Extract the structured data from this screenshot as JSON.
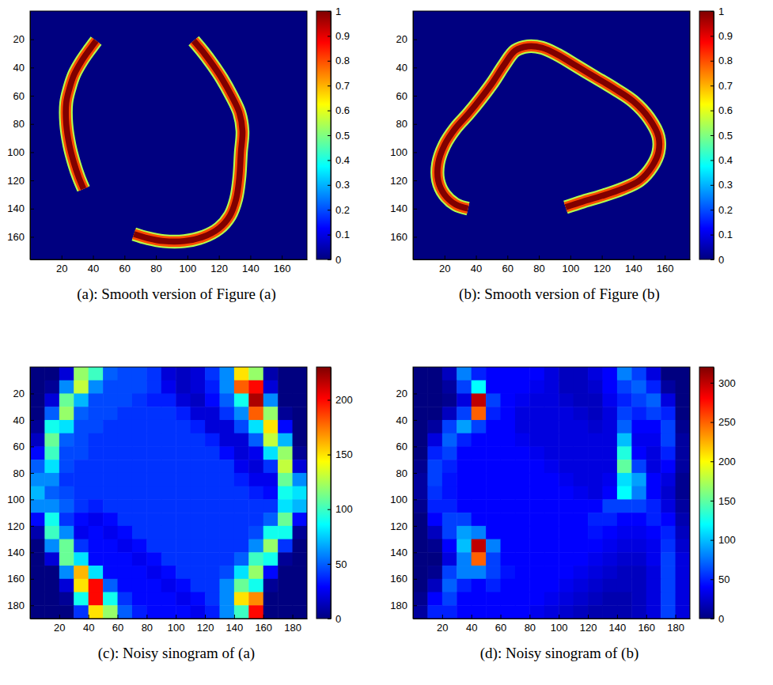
{
  "chart_data": [
    {
      "type": "heatmap",
      "title": "(a): Smooth version of Figure (a)",
      "xlim": [
        0,
        176
      ],
      "ylim": [
        0,
        176
      ],
      "xticks": [
        20,
        40,
        60,
        80,
        100,
        120,
        140,
        160
      ],
      "yticks": [
        20,
        40,
        60,
        80,
        100,
        120,
        140,
        160
      ],
      "fill_value": 0,
      "curves": [
        {
          "value": 1,
          "x": [
            42,
            38,
            33,
            28,
            25,
            23,
            23,
            25,
            28,
            31,
            34
          ],
          "y": [
            21,
            27,
            35,
            45,
            55,
            65,
            80,
            95,
            108,
            118,
            126
          ]
        },
        {
          "value": 1,
          "x": [
            104,
            110,
            116,
            122,
            128,
            133,
            135,
            134,
            133,
            131,
            127,
            120,
            110,
            98,
            85,
            75,
            66
          ],
          "y": [
            21,
            29,
            38,
            48,
            60,
            72,
            85,
            100,
            118,
            133,
            145,
            154,
            160,
            163,
            163,
            161,
            158
          ]
        }
      ],
      "colorbar": {
        "range": [
          0,
          1
        ],
        "ticks": [
          0,
          0.1,
          0.2,
          0.3,
          0.4,
          0.5,
          0.6,
          0.7,
          0.8,
          0.9,
          1
        ]
      }
    },
    {
      "type": "heatmap",
      "title": "(b): Smooth version of Figure (b)",
      "xlim": [
        0,
        176
      ],
      "ylim": [
        0,
        176
      ],
      "xticks": [
        20,
        40,
        60,
        80,
        100,
        120,
        140,
        160
      ],
      "yticks": [
        20,
        40,
        60,
        80,
        100,
        120,
        140,
        160
      ],
      "fill_value": 0,
      "curves": [
        {
          "value": 1,
          "x": [
            35,
            27,
            20,
            16,
            16,
            20,
            27,
            35,
            43,
            51,
            58,
            65,
            73,
            82,
            92,
            104,
            116,
            128,
            140,
            150,
            156,
            156,
            152,
            144,
            133,
            120,
            108,
            97
          ],
          "y": [
            140,
            137,
            130,
            120,
            108,
            95,
            83,
            73,
            62,
            50,
            38,
            28,
            25,
            26,
            31,
            39,
            47,
            55,
            64,
            76,
            89,
            100,
            110,
            120,
            126,
            131,
            135,
            139
          ]
        }
      ],
      "colorbar": {
        "range": [
          0,
          1
        ],
        "ticks": [
          0,
          0.1,
          0.2,
          0.3,
          0.4,
          0.5,
          0.6,
          0.7,
          0.8,
          0.9,
          1
        ]
      }
    },
    {
      "type": "heatmap",
      "title": "(c): Noisy sinogram of (a)",
      "xlim": [
        0,
        190
      ],
      "ylim": [
        0,
        190
      ],
      "xticks": [
        20,
        40,
        60,
        80,
        100,
        120,
        140,
        160,
        180
      ],
      "yticks": [
        20,
        40,
        60,
        80,
        100,
        120,
        140,
        160,
        180
      ],
      "x": [
        5,
        15,
        25,
        35,
        45,
        55,
        65,
        75,
        85,
        95,
        105,
        115,
        125,
        135,
        145,
        155,
        165,
        175,
        185
      ],
      "y": [
        5,
        15,
        25,
        35,
        45,
        55,
        65,
        75,
        85,
        95,
        105,
        115,
        125,
        135,
        145,
        155,
        165,
        175,
        185
      ],
      "cells": [
        [
          0,
          0,
          20,
          120,
          100,
          50,
          45,
          45,
          40,
          20,
          15,
          20,
          40,
          60,
          150,
          120,
          10,
          0,
          0
        ],
        [
          0,
          5,
          60,
          130,
          60,
          45,
          45,
          45,
          40,
          25,
          15,
          20,
          35,
          60,
          180,
          200,
          20,
          0,
          0
        ],
        [
          0,
          20,
          110,
          70,
          45,
          45,
          45,
          40,
          35,
          35,
          20,
          15,
          30,
          50,
          90,
          220,
          60,
          0,
          0
        ],
        [
          0,
          50,
          120,
          50,
          45,
          45,
          40,
          40,
          40,
          40,
          35,
          20,
          20,
          40,
          60,
          180,
          120,
          5,
          0
        ],
        [
          5,
          90,
          80,
          45,
          45,
          40,
          40,
          40,
          40,
          40,
          40,
          35,
          20,
          20,
          45,
          80,
          150,
          30,
          0
        ],
        [
          15,
          110,
          50,
          45,
          40,
          40,
          40,
          40,
          40,
          40,
          40,
          40,
          35,
          20,
          20,
          50,
          130,
          70,
          0
        ],
        [
          30,
          100,
          45,
          45,
          40,
          40,
          40,
          40,
          40,
          40,
          40,
          40,
          40,
          30,
          20,
          25,
          80,
          120,
          5
        ],
        [
          50,
          80,
          45,
          40,
          40,
          40,
          40,
          40,
          40,
          40,
          40,
          40,
          40,
          40,
          25,
          20,
          40,
          130,
          20
        ],
        [
          60,
          60,
          40,
          40,
          40,
          40,
          40,
          40,
          40,
          40,
          40,
          40,
          40,
          40,
          35,
          25,
          25,
          110,
          60
        ],
        [
          70,
          50,
          45,
          40,
          40,
          40,
          40,
          40,
          40,
          40,
          40,
          40,
          40,
          40,
          40,
          35,
          30,
          90,
          80
        ],
        [
          60,
          60,
          50,
          40,
          35,
          40,
          40,
          40,
          40,
          40,
          40,
          40,
          40,
          40,
          40,
          40,
          40,
          80,
          70
        ],
        [
          30,
          90,
          40,
          30,
          25,
          30,
          40,
          40,
          40,
          40,
          40,
          40,
          40,
          40,
          40,
          40,
          50,
          110,
          30
        ],
        [
          10,
          100,
          60,
          25,
          30,
          25,
          30,
          40,
          40,
          40,
          40,
          40,
          40,
          40,
          40,
          45,
          90,
          90,
          5
        ],
        [
          0,
          60,
          110,
          40,
          30,
          30,
          25,
          30,
          40,
          40,
          40,
          40,
          40,
          40,
          40,
          60,
          120,
          40,
          0
        ],
        [
          0,
          20,
          110,
          80,
          30,
          30,
          30,
          25,
          30,
          40,
          40,
          40,
          40,
          40,
          50,
          100,
          90,
          5,
          0
        ],
        [
          0,
          0,
          60,
          160,
          80,
          30,
          30,
          30,
          25,
          30,
          40,
          40,
          40,
          45,
          80,
          120,
          30,
          0,
          0
        ],
        [
          0,
          0,
          20,
          150,
          200,
          50,
          30,
          30,
          30,
          25,
          30,
          40,
          40,
          60,
          110,
          90,
          5,
          0,
          0
        ],
        [
          0,
          0,
          5,
          90,
          200,
          90,
          40,
          30,
          30,
          30,
          25,
          30,
          40,
          60,
          150,
          170,
          0,
          0,
          0
        ],
        [
          0,
          0,
          0,
          40,
          150,
          120,
          50,
          35,
          30,
          30,
          30,
          25,
          35,
          60,
          100,
          200,
          0,
          0,
          0
        ]
      ],
      "colorbar": {
        "range": [
          0,
          230
        ],
        "ticks": [
          0,
          50,
          100,
          150,
          200
        ]
      }
    },
    {
      "type": "heatmap",
      "title": "(d): Noisy sinogram of (b)",
      "xlim": [
        0,
        190
      ],
      "ylim": [
        0,
        190
      ],
      "xticks": [
        20,
        40,
        60,
        80,
        100,
        120,
        140,
        160,
        180
      ],
      "yticks": [
        20,
        40,
        60,
        80,
        100,
        120,
        140,
        160,
        180
      ],
      "x": [
        5,
        15,
        25,
        35,
        45,
        55,
        65,
        75,
        85,
        95,
        105,
        115,
        125,
        135,
        145,
        155,
        165,
        175,
        185
      ],
      "y": [
        5,
        15,
        25,
        35,
        45,
        55,
        65,
        75,
        85,
        95,
        105,
        115,
        125,
        135,
        145,
        155,
        165,
        175,
        185
      ],
      "cells": [
        [
          0,
          0,
          20,
          80,
          50,
          40,
          40,
          40,
          40,
          30,
          20,
          20,
          30,
          40,
          80,
          60,
          30,
          0,
          0
        ],
        [
          0,
          0,
          10,
          60,
          120,
          40,
          40,
          40,
          35,
          30,
          20,
          20,
          25,
          40,
          60,
          70,
          50,
          10,
          0
        ],
        [
          0,
          0,
          5,
          30,
          300,
          60,
          40,
          35,
          30,
          30,
          25,
          20,
          20,
          35,
          50,
          60,
          70,
          30,
          0
        ],
        [
          0,
          0,
          20,
          60,
          250,
          50,
          40,
          30,
          30,
          30,
          30,
          25,
          20,
          30,
          60,
          50,
          60,
          50,
          0
        ],
        [
          0,
          10,
          60,
          90,
          60,
          40,
          40,
          30,
          30,
          30,
          30,
          30,
          25,
          30,
          70,
          40,
          40,
          60,
          5
        ],
        [
          0,
          30,
          70,
          50,
          40,
          40,
          40,
          35,
          30,
          30,
          30,
          30,
          30,
          30,
          100,
          35,
          35,
          60,
          10
        ],
        [
          0,
          50,
          60,
          40,
          40,
          40,
          40,
          40,
          35,
          30,
          30,
          30,
          30,
          30,
          130,
          40,
          30,
          50,
          10
        ],
        [
          5,
          60,
          50,
          40,
          40,
          40,
          40,
          40,
          40,
          35,
          30,
          30,
          30,
          30,
          150,
          60,
          30,
          40,
          10
        ],
        [
          10,
          60,
          45,
          40,
          40,
          40,
          40,
          40,
          40,
          40,
          35,
          30,
          30,
          35,
          110,
          90,
          40,
          30,
          5
        ],
        [
          10,
          55,
          45,
          40,
          40,
          40,
          40,
          40,
          40,
          40,
          40,
          35,
          30,
          40,
          120,
          80,
          40,
          25,
          5
        ],
        [
          5,
          50,
          50,
          40,
          40,
          40,
          40,
          40,
          40,
          40,
          40,
          40,
          40,
          60,
          60,
          60,
          50,
          30,
          10
        ],
        [
          0,
          40,
          60,
          60,
          40,
          40,
          40,
          40,
          40,
          40,
          40,
          40,
          50,
          50,
          40,
          40,
          50,
          40,
          15
        ],
        [
          0,
          20,
          60,
          90,
          80,
          40,
          40,
          40,
          40,
          40,
          40,
          40,
          45,
          40,
          35,
          35,
          40,
          50,
          20
        ],
        [
          0,
          5,
          40,
          100,
          300,
          80,
          40,
          40,
          40,
          40,
          40,
          40,
          40,
          35,
          30,
          30,
          35,
          55,
          25
        ],
        [
          0,
          0,
          30,
          80,
          250,
          60,
          40,
          40,
          40,
          40,
          40,
          40,
          35,
          30,
          25,
          25,
          35,
          60,
          30
        ],
        [
          0,
          5,
          60,
          80,
          80,
          60,
          45,
          40,
          40,
          40,
          40,
          35,
          30,
          25,
          20,
          20,
          30,
          60,
          30
        ],
        [
          0,
          20,
          70,
          50,
          40,
          50,
          40,
          40,
          40,
          40,
          35,
          30,
          25,
          20,
          20,
          20,
          30,
          60,
          30
        ],
        [
          5,
          40,
          60,
          40,
          40,
          40,
          40,
          40,
          40,
          35,
          30,
          25,
          20,
          15,
          15,
          20,
          30,
          60,
          30
        ],
        [
          10,
          50,
          50,
          40,
          40,
          40,
          40,
          40,
          35,
          30,
          25,
          20,
          15,
          15,
          15,
          20,
          30,
          60,
          30
        ]
      ],
      "colorbar": {
        "range": [
          0,
          320
        ],
        "ticks": [
          0,
          50,
          100,
          150,
          200,
          250,
          300
        ]
      }
    }
  ]
}
